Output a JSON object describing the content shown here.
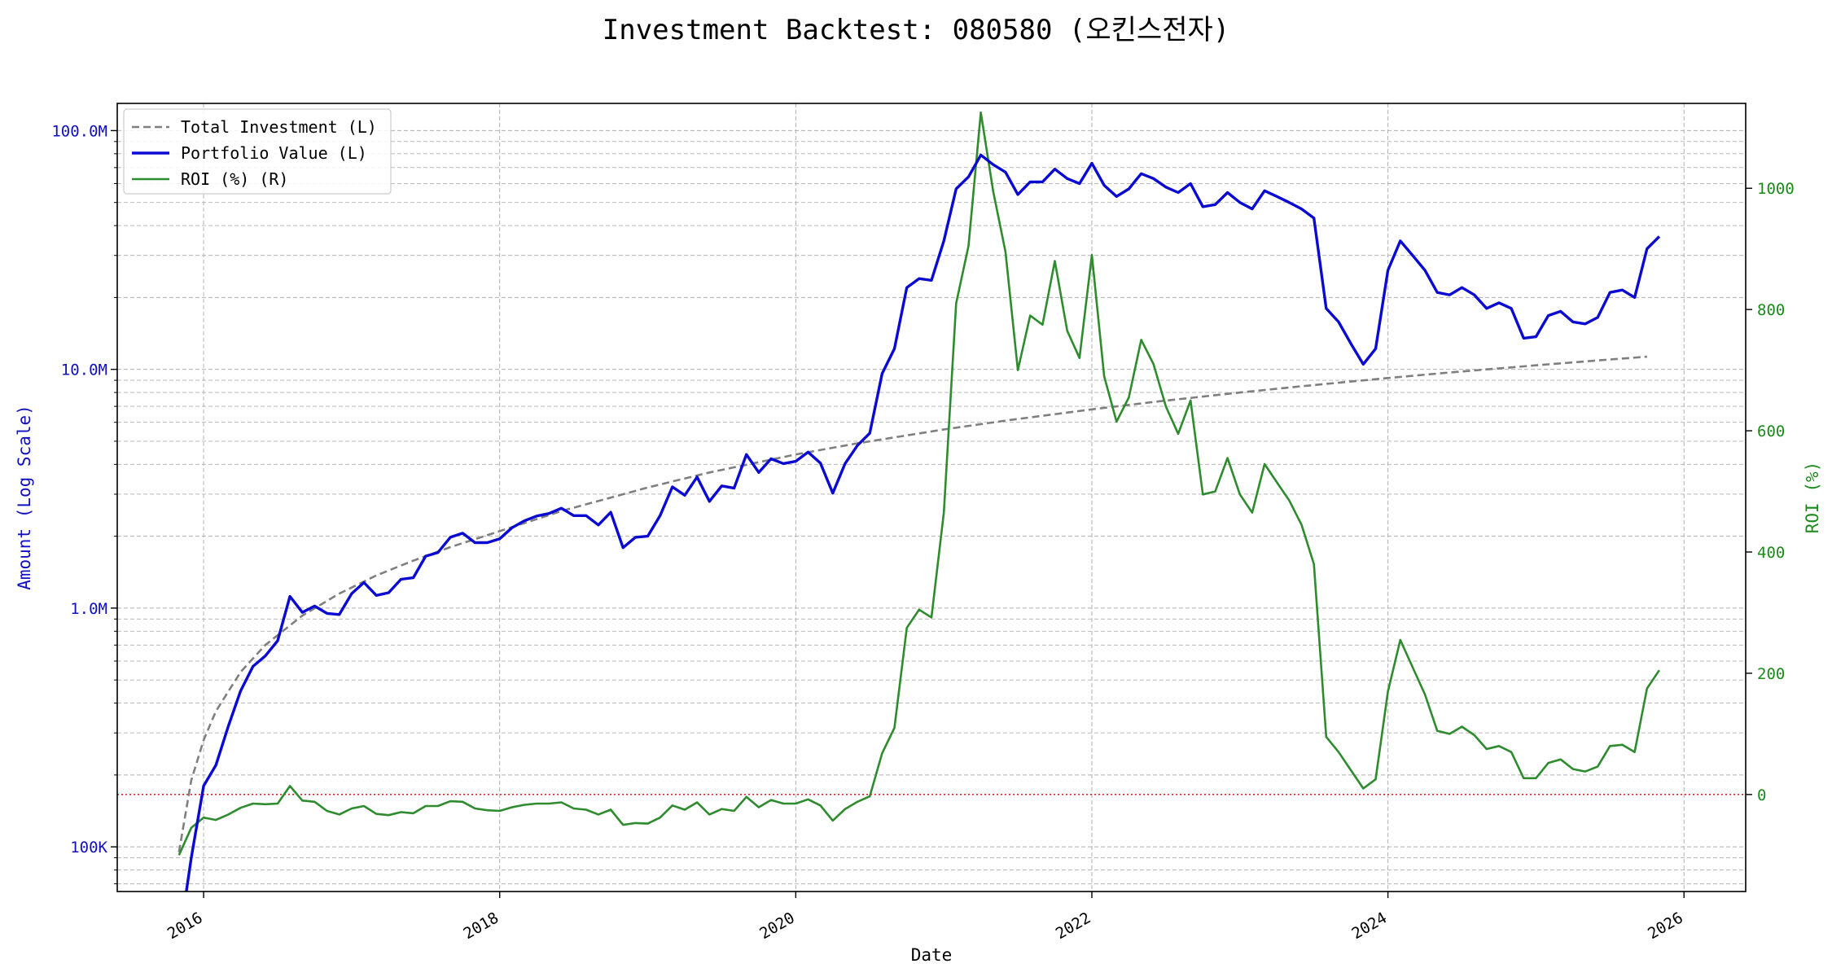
{
  "chart_data": {
    "type": "line",
    "title": "Investment Backtest: 080580 (오킨스전자)",
    "xlabel": "Date",
    "ylabel_left": "Amount (Log Scale)",
    "ylabel_right": "ROI (%)",
    "left_axis_scale": "log",
    "ylim_left": [
      65000,
      130000000
    ],
    "ylim_right": [
      -160,
      1140
    ],
    "xlim": [
      "2015-06",
      "2026-06"
    ],
    "x_tick_labels": [
      "2016",
      "2018",
      "2020",
      "2022",
      "2024",
      "2026"
    ],
    "y_left_tick_labels": [
      "100K",
      "1.0M",
      "10.0M",
      "100.0M"
    ],
    "y_right_tick_labels": [
      "0",
      "200",
      "400",
      "600",
      "800",
      "1000"
    ],
    "grid": true,
    "legend_position": "top-left",
    "reference_line": {
      "axis": "right",
      "value": 0,
      "style": "dotted",
      "color": "#e00000"
    },
    "colors": {
      "left_axis": "#1010c0",
      "right_axis": "#1a8a1a",
      "investment": "#7f7f7f",
      "portfolio": "#0a0ad0",
      "roi": "#2e8b2e",
      "grid": "#b0b0b0"
    },
    "legend": [
      {
        "label": "Total Investment (L)",
        "key": "investment"
      },
      {
        "label": "Portfolio Value (L)",
        "key": "portfolio"
      },
      {
        "label": "ROI (%) (R)",
        "key": "roi"
      }
    ],
    "series": [
      {
        "name": "Total Investment (L)",
        "axis": "left",
        "style": "dashed",
        "points": [
          [
            "2015-11",
            95000
          ],
          [
            "2015-12",
            190000
          ],
          [
            "2016-01",
            280000
          ],
          [
            "2016-02",
            370000
          ],
          [
            "2016-04",
            540000
          ],
          [
            "2016-06",
            700000
          ],
          [
            "2016-09",
            930000
          ],
          [
            "2016-12",
            1150000
          ],
          [
            "2017-03",
            1370000
          ],
          [
            "2017-06",
            1580000
          ],
          [
            "2017-09",
            1800000
          ],
          [
            "2018-01",
            2100000
          ],
          [
            "2018-06",
            2550000
          ],
          [
            "2019-01",
            3200000
          ],
          [
            "2019-06",
            3700000
          ],
          [
            "2020-01",
            4400000
          ],
          [
            "2020-06",
            4900000
          ],
          [
            "2021-01",
            5600000
          ],
          [
            "2021-06",
            6100000
          ],
          [
            "2022-01",
            6800000
          ],
          [
            "2022-06",
            7300000
          ],
          [
            "2023-01",
            8000000
          ],
          [
            "2023-06",
            8500000
          ],
          [
            "2024-01",
            9200000
          ],
          [
            "2024-06",
            9700000
          ],
          [
            "2025-01",
            10400000
          ],
          [
            "2025-06",
            10900000
          ],
          [
            "2025-10",
            11300000
          ]
        ]
      },
      {
        "name": "Portfolio Value (L)",
        "axis": "left",
        "style": "solid",
        "points": [
          [
            "2015-11",
            40000
          ],
          [
            "2015-12",
            90000
          ],
          [
            "2016-01",
            180000
          ],
          [
            "2016-02",
            220000
          ],
          [
            "2016-03",
            320000
          ],
          [
            "2016-04",
            450000
          ],
          [
            "2016-05",
            570000
          ],
          [
            "2016-06",
            630000
          ],
          [
            "2016-07",
            730000
          ],
          [
            "2016-08",
            1120000
          ],
          [
            "2016-09",
            960000
          ],
          [
            "2016-10",
            1020000
          ],
          [
            "2016-11",
            950000
          ],
          [
            "2016-12",
            940000
          ],
          [
            "2017-01",
            1150000
          ],
          [
            "2017-02",
            1280000
          ],
          [
            "2017-03",
            1130000
          ],
          [
            "2017-04",
            1160000
          ],
          [
            "2017-05",
            1320000
          ],
          [
            "2017-06",
            1340000
          ],
          [
            "2017-07",
            1650000
          ],
          [
            "2017-08",
            1710000
          ],
          [
            "2017-09",
            1980000
          ],
          [
            "2017-10",
            2060000
          ],
          [
            "2017-11",
            1880000
          ],
          [
            "2017-12",
            1880000
          ],
          [
            "2018-01",
            1950000
          ],
          [
            "2018-02",
            2170000
          ],
          [
            "2018-03",
            2320000
          ],
          [
            "2018-04",
            2430000
          ],
          [
            "2018-05",
            2490000
          ],
          [
            "2018-06",
            2620000
          ],
          [
            "2018-07",
            2440000
          ],
          [
            "2018-08",
            2440000
          ],
          [
            "2018-09",
            2230000
          ],
          [
            "2018-10",
            2520000
          ],
          [
            "2018-11",
            1790000
          ],
          [
            "2018-12",
            1980000
          ],
          [
            "2019-01",
            2000000
          ],
          [
            "2019-02",
            2440000
          ],
          [
            "2019-03",
            3220000
          ],
          [
            "2019-04",
            2970000
          ],
          [
            "2019-05",
            3540000
          ],
          [
            "2019-06",
            2800000
          ],
          [
            "2019-07",
            3250000
          ],
          [
            "2019-08",
            3180000
          ],
          [
            "2019-09",
            4400000
          ],
          [
            "2019-10",
            3700000
          ],
          [
            "2019-11",
            4220000
          ],
          [
            "2019-12",
            4030000
          ],
          [
            "2020-01",
            4120000
          ],
          [
            "2020-02",
            4500000
          ],
          [
            "2020-03",
            4050000
          ],
          [
            "2020-04",
            3030000
          ],
          [
            "2020-05",
            4030000
          ],
          [
            "2020-06",
            4800000
          ],
          [
            "2020-07",
            5400000
          ],
          [
            "2020-08",
            9600000
          ],
          [
            "2020-09",
            12200000
          ],
          [
            "2020-10",
            22000000
          ],
          [
            "2020-11",
            24000000
          ],
          [
            "2020-12",
            23600000
          ],
          [
            "2021-01",
            34500000
          ],
          [
            "2021-02",
            57000000
          ],
          [
            "2021-03",
            64000000
          ],
          [
            "2021-04",
            79000000
          ],
          [
            "2021-05",
            72000000
          ],
          [
            "2021-06",
            67000000
          ],
          [
            "2021-07",
            54000000
          ],
          [
            "2021-08",
            61000000
          ],
          [
            "2021-09",
            61000000
          ],
          [
            "2021-10",
            69000000
          ],
          [
            "2021-11",
            63000000
          ],
          [
            "2021-12",
            60000000
          ],
          [
            "2022-01",
            73000000
          ],
          [
            "2022-02",
            59000000
          ],
          [
            "2022-03",
            53000000
          ],
          [
            "2022-04",
            57000000
          ],
          [
            "2022-05",
            66000000
          ],
          [
            "2022-06",
            63000000
          ],
          [
            "2022-07",
            58000000
          ],
          [
            "2022-08",
            55000000
          ],
          [
            "2022-09",
            60000000
          ],
          [
            "2022-10",
            48000000
          ],
          [
            "2022-11",
            49000000
          ],
          [
            "2022-12",
            55000000
          ],
          [
            "2023-01",
            50000000
          ],
          [
            "2023-02",
            47000000
          ],
          [
            "2023-03",
            56000000
          ],
          [
            "2023-04",
            53000000
          ],
          [
            "2023-05",
            50000000
          ],
          [
            "2023-06",
            47000000
          ],
          [
            "2023-07",
            43000000
          ],
          [
            "2023-08",
            18000000
          ],
          [
            "2023-09",
            15800000
          ],
          [
            "2023-10",
            12800000
          ],
          [
            "2023-11",
            10500000
          ],
          [
            "2023-12",
            12200000
          ],
          [
            "2024-01",
            26000000
          ],
          [
            "2024-02",
            34500000
          ],
          [
            "2024-03",
            30000000
          ],
          [
            "2024-04",
            26000000
          ],
          [
            "2024-05",
            21000000
          ],
          [
            "2024-06",
            20500000
          ],
          [
            "2024-07",
            22000000
          ],
          [
            "2024-08",
            20500000
          ],
          [
            "2024-09",
            18000000
          ],
          [
            "2024-10",
            19000000
          ],
          [
            "2024-11",
            18000000
          ],
          [
            "2024-12",
            13500000
          ],
          [
            "2025-01",
            13700000
          ],
          [
            "2025-02",
            16800000
          ],
          [
            "2025-03",
            17500000
          ],
          [
            "2025-04",
            15800000
          ],
          [
            "2025-05",
            15500000
          ],
          [
            "2025-06",
            16500000
          ],
          [
            "2025-07",
            21000000
          ],
          [
            "2025-08",
            21500000
          ],
          [
            "2025-09",
            20000000
          ],
          [
            "2025-10",
            32000000
          ],
          [
            "2025-11",
            36000000
          ]
        ]
      },
      {
        "name": "ROI (%) (R)",
        "axis": "right",
        "style": "solid",
        "points": [
          [
            "2015-11",
            -100
          ],
          [
            "2015-12",
            -55
          ],
          [
            "2016-01",
            -38
          ],
          [
            "2016-02",
            -42
          ],
          [
            "2016-03",
            -33
          ],
          [
            "2016-04",
            -22
          ],
          [
            "2016-05",
            -15
          ],
          [
            "2016-06",
            -16
          ],
          [
            "2016-07",
            -15
          ],
          [
            "2016-08",
            14
          ],
          [
            "2016-09",
            -10
          ],
          [
            "2016-10",
            -12
          ],
          [
            "2016-11",
            -27
          ],
          [
            "2016-12",
            -33
          ],
          [
            "2017-01",
            -23
          ],
          [
            "2017-02",
            -19
          ],
          [
            "2017-03",
            -32
          ],
          [
            "2017-04",
            -34
          ],
          [
            "2017-05",
            -29
          ],
          [
            "2017-06",
            -31
          ],
          [
            "2017-07",
            -19
          ],
          [
            "2017-08",
            -19
          ],
          [
            "2017-09",
            -11
          ],
          [
            "2017-10",
            -12
          ],
          [
            "2017-11",
            -23
          ],
          [
            "2017-12",
            -26
          ],
          [
            "2018-01",
            -27
          ],
          [
            "2018-02",
            -21
          ],
          [
            "2018-03",
            -17
          ],
          [
            "2018-04",
            -15
          ],
          [
            "2018-05",
            -15
          ],
          [
            "2018-06",
            -13
          ],
          [
            "2018-07",
            -23
          ],
          [
            "2018-08",
            -25
          ],
          [
            "2018-09",
            -33
          ],
          [
            "2018-10",
            -25
          ],
          [
            "2018-11",
            -50
          ],
          [
            "2018-12",
            -47
          ],
          [
            "2019-01",
            -48
          ],
          [
            "2019-02",
            -38
          ],
          [
            "2019-03",
            -18
          ],
          [
            "2019-04",
            -25
          ],
          [
            "2019-05",
            -13
          ],
          [
            "2019-06",
            -33
          ],
          [
            "2019-07",
            -24
          ],
          [
            "2019-08",
            -27
          ],
          [
            "2019-09",
            -4
          ],
          [
            "2019-10",
            -21
          ],
          [
            "2019-11",
            -9
          ],
          [
            "2019-12",
            -15
          ],
          [
            "2020-01",
            -15
          ],
          [
            "2020-02",
            -8
          ],
          [
            "2020-03",
            -18
          ],
          [
            "2020-04",
            -43
          ],
          [
            "2020-05",
            -24
          ],
          [
            "2020-06",
            -12
          ],
          [
            "2020-07",
            -3
          ],
          [
            "2020-08",
            68
          ],
          [
            "2020-09",
            110
          ],
          [
            "2020-10",
            275
          ],
          [
            "2020-11",
            305
          ],
          [
            "2020-12",
            292
          ],
          [
            "2021-01",
            465
          ],
          [
            "2021-02",
            810
          ],
          [
            "2021-03",
            905
          ],
          [
            "2021-04",
            1125
          ],
          [
            "2021-05",
            995
          ],
          [
            "2021-06",
            895
          ],
          [
            "2021-07",
            700
          ],
          [
            "2021-08",
            790
          ],
          [
            "2021-09",
            775
          ],
          [
            "2021-10",
            880
          ],
          [
            "2021-11",
            765
          ],
          [
            "2021-12",
            720
          ],
          [
            "2022-01",
            890
          ],
          [
            "2022-02",
            690
          ],
          [
            "2022-03",
            615
          ],
          [
            "2022-04",
            655
          ],
          [
            "2022-05",
            750
          ],
          [
            "2022-06",
            710
          ],
          [
            "2022-07",
            640
          ],
          [
            "2022-08",
            595
          ],
          [
            "2022-09",
            650
          ],
          [
            "2022-10",
            495
          ],
          [
            "2022-11",
            500
          ],
          [
            "2022-12",
            555
          ],
          [
            "2023-01",
            495
          ],
          [
            "2023-02",
            465
          ],
          [
            "2023-03",
            545
          ],
          [
            "2023-04",
            515
          ],
          [
            "2023-05",
            485
          ],
          [
            "2023-06",
            445
          ],
          [
            "2023-07",
            380
          ],
          [
            "2023-08",
            95
          ],
          [
            "2023-09",
            70
          ],
          [
            "2023-10",
            40
          ],
          [
            "2023-11",
            10
          ],
          [
            "2023-12",
            25
          ],
          [
            "2024-01",
            170
          ],
          [
            "2024-02",
            255
          ],
          [
            "2024-03",
            210
          ],
          [
            "2024-04",
            165
          ],
          [
            "2024-05",
            105
          ],
          [
            "2024-06",
            100
          ],
          [
            "2024-07",
            112
          ],
          [
            "2024-08",
            98
          ],
          [
            "2024-09",
            75
          ],
          [
            "2024-10",
            80
          ],
          [
            "2024-11",
            70
          ],
          [
            "2024-12",
            27
          ],
          [
            "2025-01",
            27
          ],
          [
            "2025-02",
            52
          ],
          [
            "2025-03",
            58
          ],
          [
            "2025-04",
            42
          ],
          [
            "2025-05",
            38
          ],
          [
            "2025-06",
            46
          ],
          [
            "2025-07",
            80
          ],
          [
            "2025-08",
            82
          ],
          [
            "2025-09",
            70
          ],
          [
            "2025-10",
            175
          ],
          [
            "2025-11",
            205
          ]
        ]
      }
    ]
  }
}
